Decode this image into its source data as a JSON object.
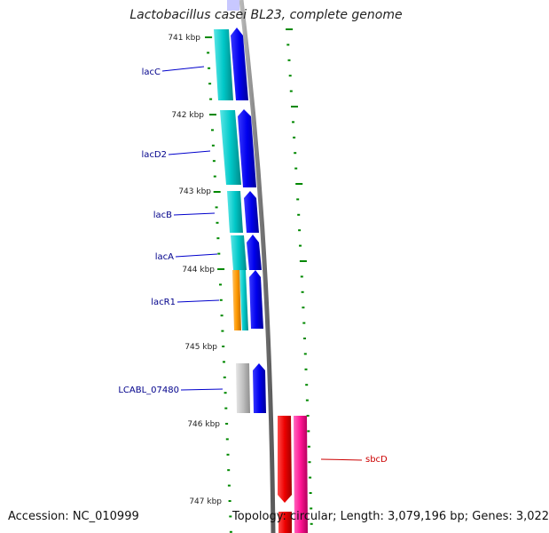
{
  "title": "Lactobacillus casei BL23, complete genome",
  "accession": "Accession: NC_010999",
  "topology": "Topology: circular; Length: 3,079,196 bp; Genes: 3,022",
  "ticks": [
    "741 kbp",
    "742 kbp",
    "743 kbp",
    "744 kbp",
    "745 kbp",
    "746 kbp",
    "747 kbp"
  ],
  "genes": [
    {
      "name": "lacC",
      "strand": "+",
      "color": "#0000ee"
    },
    {
      "name": "lacD2",
      "strand": "+",
      "color": "#0000ee"
    },
    {
      "name": "lacB",
      "strand": "+",
      "color": "#0000ee"
    },
    {
      "name": "lacA",
      "strand": "+",
      "color": "#0000ee"
    },
    {
      "name": "lacR1",
      "strand": "+",
      "color": "#0000ee"
    },
    {
      "name": "LCABL_07480",
      "strand": "+",
      "color": "#0000ee"
    },
    {
      "name": "sbcD",
      "strand": "-",
      "color": "#ee0000"
    }
  ],
  "colors": {
    "label_forward": "#00008b",
    "label_reverse": "#cc0000",
    "cds_forward": "#0000ee",
    "cds_reverse": "#ee0000",
    "cog_teal": "#00c8c8",
    "cog_orange": "#ff9900",
    "cog_grey": "#c0c0c0",
    "cog_pink": "#ff1493",
    "backbone": "#888888",
    "tick": "#008800"
  }
}
